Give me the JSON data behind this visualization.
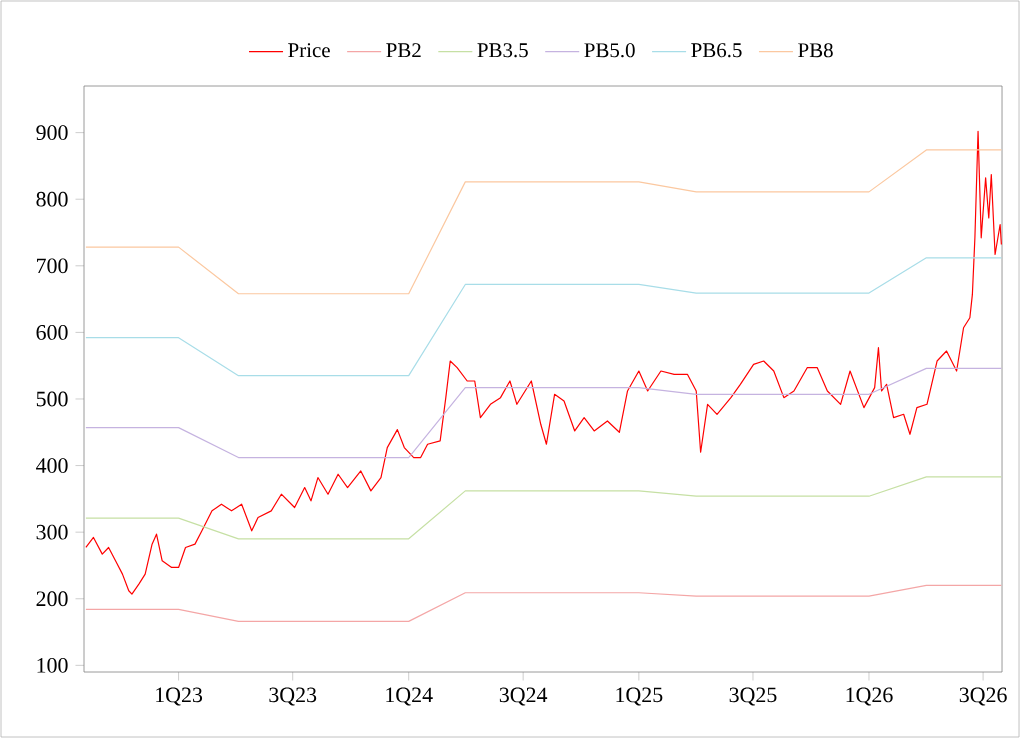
{
  "chart_data": {
    "type": "line",
    "legend": "top",
    "grid": false,
    "marker": "none",
    "line_style": "solid",
    "xlim": [
      "2022-08-04",
      "2026-07-31"
    ],
    "ylim": [
      90,
      970
    ],
    "xticks": [
      {
        "value": "2023-01-01",
        "label": "1Q23"
      },
      {
        "value": "2023-07-01",
        "label": "3Q23"
      },
      {
        "value": "2024-01-01",
        "label": "1Q24"
      },
      {
        "value": "2024-07-01",
        "label": "3Q24"
      },
      {
        "value": "2025-01-01",
        "label": "1Q25"
      },
      {
        "value": "2025-07-01",
        "label": "3Q25"
      },
      {
        "value": "2026-01-01",
        "label": "1Q26"
      },
      {
        "value": "2026-07-01",
        "label": "3Q26"
      }
    ],
    "yticks": [
      100,
      200,
      300,
      400,
      500,
      600,
      700,
      800,
      900
    ],
    "series": [
      {
        "name": "Price",
        "color": "#ff0000",
        "x": [
          "2022-08-07",
          "2022-08-19",
          "2022-09-02",
          "2022-09-12",
          "2022-09-23",
          "2022-10-04",
          "2022-10-14",
          "2022-10-19",
          "2022-10-30",
          "2022-11-09",
          "2022-11-20",
          "2022-11-27",
          "2022-12-06",
          "2022-12-21",
          "2023-01-01",
          "2023-01-12",
          "2023-01-27",
          "2023-02-07",
          "2023-02-23",
          "2023-03-10",
          "2023-03-26",
          "2023-04-11",
          "2023-04-27",
          "2023-05-07",
          "2023-05-28",
          "2023-06-13",
          "2023-07-04",
          "2023-07-20",
          "2023-07-30",
          "2023-08-10",
          "2023-08-26",
          "2023-09-11",
          "2023-09-26",
          "2023-10-17",
          "2023-11-02",
          "2023-11-18",
          "2023-11-28",
          "2023-12-14",
          "2023-12-25",
          "2024-01-09",
          "2024-01-20",
          "2024-01-31",
          "2024-02-20",
          "2024-02-29",
          "2024-03-07",
          "2024-03-18",
          "2024-04-03",
          "2024-04-15",
          "2024-04-24",
          "2024-05-10",
          "2024-05-26",
          "2024-06-10",
          "2024-06-21",
          "2024-07-14",
          "2024-07-29",
          "2024-08-07",
          "2024-08-20",
          "2024-09-04",
          "2024-09-21",
          "2024-10-06",
          "2024-10-22",
          "2024-11-12",
          "2024-12-01",
          "2024-12-14",
          "2025-01-01",
          "2025-01-15",
          "2025-02-05",
          "2025-02-26",
          "2025-03-19",
          "2025-04-02",
          "2025-04-09",
          "2025-04-20",
          "2025-05-05",
          "2025-05-27",
          "2025-06-11",
          "2025-07-02",
          "2025-07-18",
          "2025-08-03",
          "2025-08-19",
          "2025-09-04",
          "2025-09-25",
          "2025-10-11",
          "2025-10-27",
          "2025-11-17",
          "2025-12-02",
          "2025-12-24",
          "2026-01-10",
          "2026-01-16",
          "2026-01-21",
          "2026-01-29",
          "2026-02-09",
          "2026-02-25",
          "2026-03-07",
          "2026-03-18",
          "2026-04-03",
          "2026-04-19",
          "2026-05-04",
          "2026-05-20",
          "2026-05-31",
          "2026-06-10",
          "2026-06-14",
          "2026-06-18",
          "2026-06-23",
          "2026-06-28",
          "2026-07-05",
          "2026-07-10",
          "2026-07-14",
          "2026-07-20",
          "2026-07-28",
          "2026-07-30"
        ],
        "values": [
          277,
          292,
          267,
          277,
          257,
          237,
          212,
          207,
          222,
          237,
          282,
          297,
          257,
          247,
          247,
          277,
          282,
          302,
          332,
          342,
          332,
          342,
          302,
          322,
          332,
          357,
          337,
          367,
          347,
          382,
          357,
          387,
          367,
          392,
          362,
          382,
          427,
          454,
          427,
          412,
          412,
          432,
          437,
          502,
          557,
          547,
          527,
          527,
          472,
          492,
          502,
          527,
          492,
          527,
          462,
          432,
          507,
          497,
          452,
          472,
          452,
          467,
          450,
          512,
          542,
          512,
          542,
          537,
          537,
          512,
          420,
          492,
          477,
          502,
          522,
          552,
          557,
          542,
          502,
          512,
          547,
          547,
          512,
          492,
          542,
          487,
          517,
          577,
          512,
          522,
          472,
          477,
          447,
          487,
          492,
          557,
          572,
          542,
          607,
          622,
          657,
          742,
          902,
          742,
          832,
          772,
          837,
          717,
          762,
          732
        ]
      },
      {
        "name": "PB2",
        "color": "#f4a6a6",
        "x": [
          "2022-08-07",
          "2023-01-01",
          "2023-04-06",
          "2024-01-01",
          "2024-03-31",
          "2025-01-01",
          "2025-04-02",
          "2026-01-01",
          "2026-04-02",
          "2026-07-30"
        ],
        "values": [
          184,
          184,
          166,
          166,
          209,
          209,
          204,
          204,
          220,
          220
        ]
      },
      {
        "name": "PB3.5",
        "color": "#c6e0a4",
        "x": [
          "2022-08-07",
          "2023-01-01",
          "2023-04-06",
          "2024-01-01",
          "2024-03-31",
          "2025-01-01",
          "2025-04-02",
          "2026-01-01",
          "2026-04-02",
          "2026-07-30"
        ],
        "values": [
          321,
          321,
          290,
          290,
          362,
          362,
          354,
          354,
          383,
          383
        ]
      },
      {
        "name": "PB5.0",
        "color": "#c5b3e0",
        "x": [
          "2022-08-07",
          "2023-01-01",
          "2023-04-06",
          "2024-01-01",
          "2024-03-31",
          "2025-01-01",
          "2025-04-02",
          "2026-01-01",
          "2026-04-02",
          "2026-07-30"
        ],
        "values": [
          457,
          457,
          412,
          412,
          517,
          517,
          507,
          507,
          546,
          546
        ]
      },
      {
        "name": "PB6.5",
        "color": "#a8dde8",
        "x": [
          "2022-08-07",
          "2023-01-01",
          "2023-04-06",
          "2024-01-01",
          "2024-03-31",
          "2025-01-01",
          "2025-04-02",
          "2026-01-01",
          "2026-04-02",
          "2026-07-30"
        ],
        "values": [
          592,
          592,
          535,
          535,
          672,
          672,
          659,
          659,
          712,
          712
        ]
      },
      {
        "name": "PB8",
        "color": "#fbc8a0",
        "x": [
          "2022-08-07",
          "2023-01-01",
          "2023-04-06",
          "2024-01-01",
          "2024-03-31",
          "2025-01-01",
          "2025-04-02",
          "2026-01-01",
          "2026-04-02",
          "2026-07-30"
        ],
        "values": [
          728,
          728,
          658,
          658,
          826,
          826,
          811,
          811,
          874,
          874
        ]
      }
    ]
  }
}
